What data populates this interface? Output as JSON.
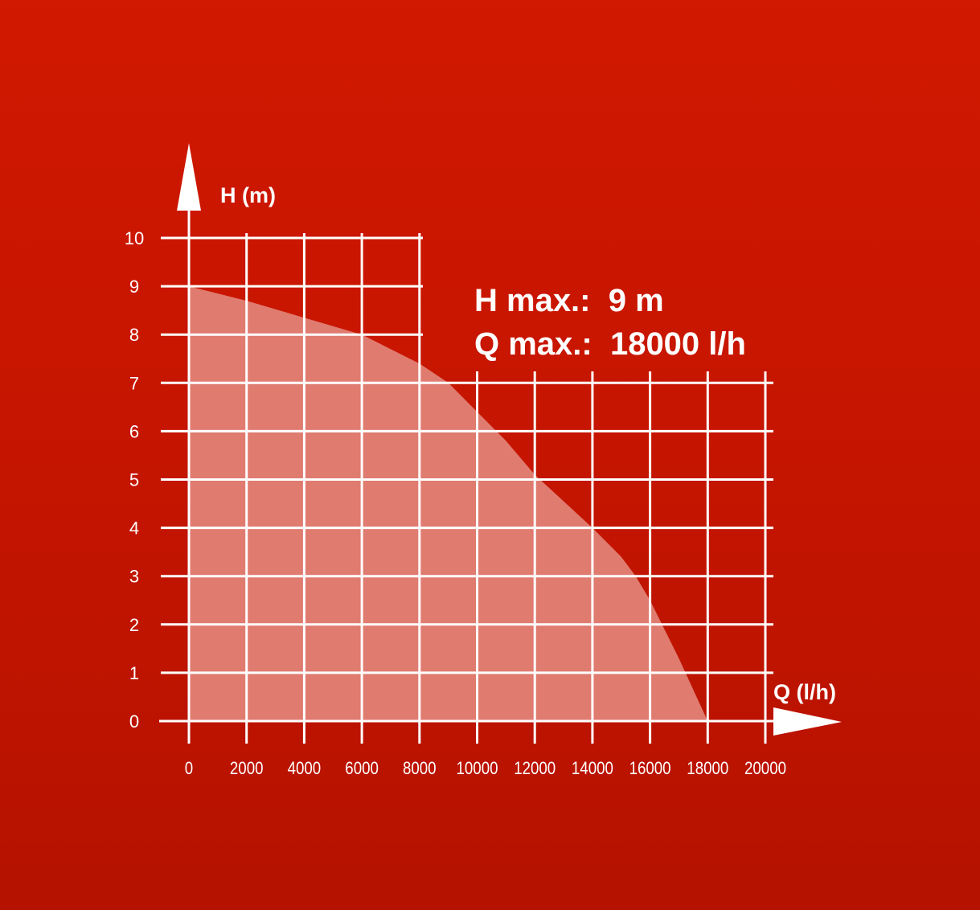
{
  "chart_data": {
    "type": "area",
    "xlabel": "Q (l/h)",
    "ylabel": "H (m)",
    "xlim": [
      0,
      20000
    ],
    "ylim": [
      0,
      10
    ],
    "grid": true,
    "x_ticks": [
      "0",
      "2000",
      "4000",
      "6000",
      "8000",
      "10000",
      "12000",
      "14000",
      "16000",
      "18000",
      "20000"
    ],
    "y_ticks": [
      "0",
      "1",
      "2",
      "3",
      "4",
      "5",
      "6",
      "7",
      "8",
      "9",
      "10"
    ],
    "series": [
      {
        "x": [
          0,
          2000,
          4000,
          6000,
          8000,
          9000,
          10000,
          11000,
          12000,
          13000,
          14000,
          15000,
          15500,
          16000,
          17000,
          18000
        ],
        "y": [
          9.0,
          8.7,
          8.35,
          8.0,
          7.4,
          7.0,
          6.4,
          5.8,
          5.1,
          4.55,
          4.0,
          3.4,
          3.0,
          2.5,
          1.3,
          0
        ]
      }
    ],
    "annotations": [
      "H max.:  9 m",
      "Q max.:  18000 l/h"
    ],
    "colors": {
      "background": "#c51500",
      "fill": "#e07b70",
      "grid": "#ffffff"
    }
  }
}
